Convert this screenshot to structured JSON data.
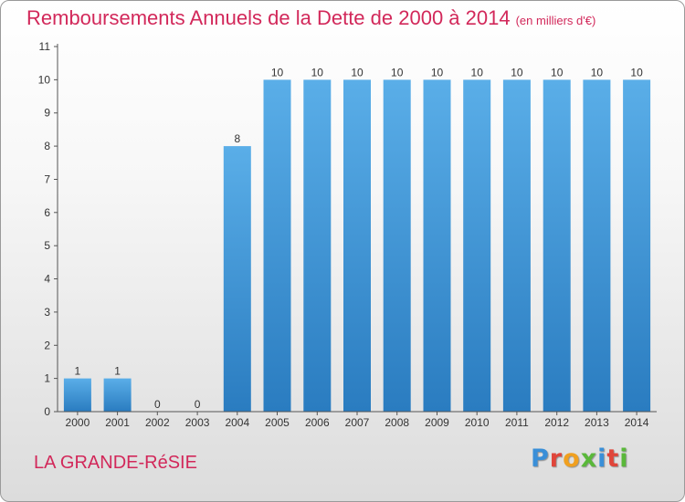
{
  "title": "Remboursements Annuels de la Dette de 2000 à 2014",
  "unit": "(en milliers d'€)",
  "commune": "LA GRANDE-RéSIE",
  "logo": {
    "text": "Proxiti",
    "colors": [
      "#3a8fd8",
      "#e0453a",
      "#f0a020",
      "#5ab83a",
      "#3a8fd8",
      "#e0453a",
      "#5ab83a"
    ]
  },
  "colors": {
    "title": "#d2285a",
    "bar_light": "#5aaee8",
    "bar_dark": "#2a7cc0"
  },
  "chart_data": {
    "type": "bar",
    "categories": [
      "2000",
      "2001",
      "2002",
      "2003",
      "2004",
      "2005",
      "2006",
      "2007",
      "2008",
      "2009",
      "2010",
      "2011",
      "2012",
      "2013",
      "2014"
    ],
    "values": [
      1,
      1,
      0,
      0,
      8,
      10,
      10,
      10,
      10,
      10,
      10,
      10,
      10,
      10,
      10
    ],
    "data_labels": [
      "1",
      "1",
      "0",
      "0",
      "8",
      "10",
      "10",
      "10",
      "10",
      "10",
      "10",
      "10",
      "10",
      "10",
      "10"
    ],
    "yticks": [
      0,
      1,
      2,
      3,
      4,
      5,
      6,
      7,
      8,
      9,
      10,
      11
    ],
    "ylim": [
      0,
      11
    ],
    "grid": false,
    "legend": "none"
  }
}
